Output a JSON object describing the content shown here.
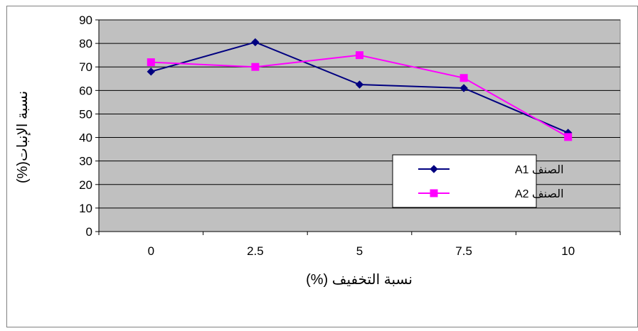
{
  "chart_data": {
    "type": "line",
    "categories": [
      "0",
      "2.5",
      "5",
      "7.5",
      "10"
    ],
    "series": [
      {
        "name": "الصنف A1",
        "values": [
          68,
          80.5,
          62.5,
          61,
          42
        ],
        "color": "#000080",
        "marker": "diamond"
      },
      {
        "name": "الصنف A2",
        "values": [
          72,
          70,
          75,
          65.3,
          40.2
        ],
        "color": "#ff00ff",
        "marker": "square"
      }
    ],
    "xlabel": "نسبة التخفيف (%)",
    "ylabel": "نسبة الإنبات(%)",
    "ylim": [
      0,
      90
    ],
    "yticks": [
      0,
      10,
      20,
      30,
      40,
      50,
      60,
      70,
      80,
      90
    ],
    "grid": "horizontal",
    "plot_background": "#c0c0c0",
    "legend_position": "inside-right"
  }
}
